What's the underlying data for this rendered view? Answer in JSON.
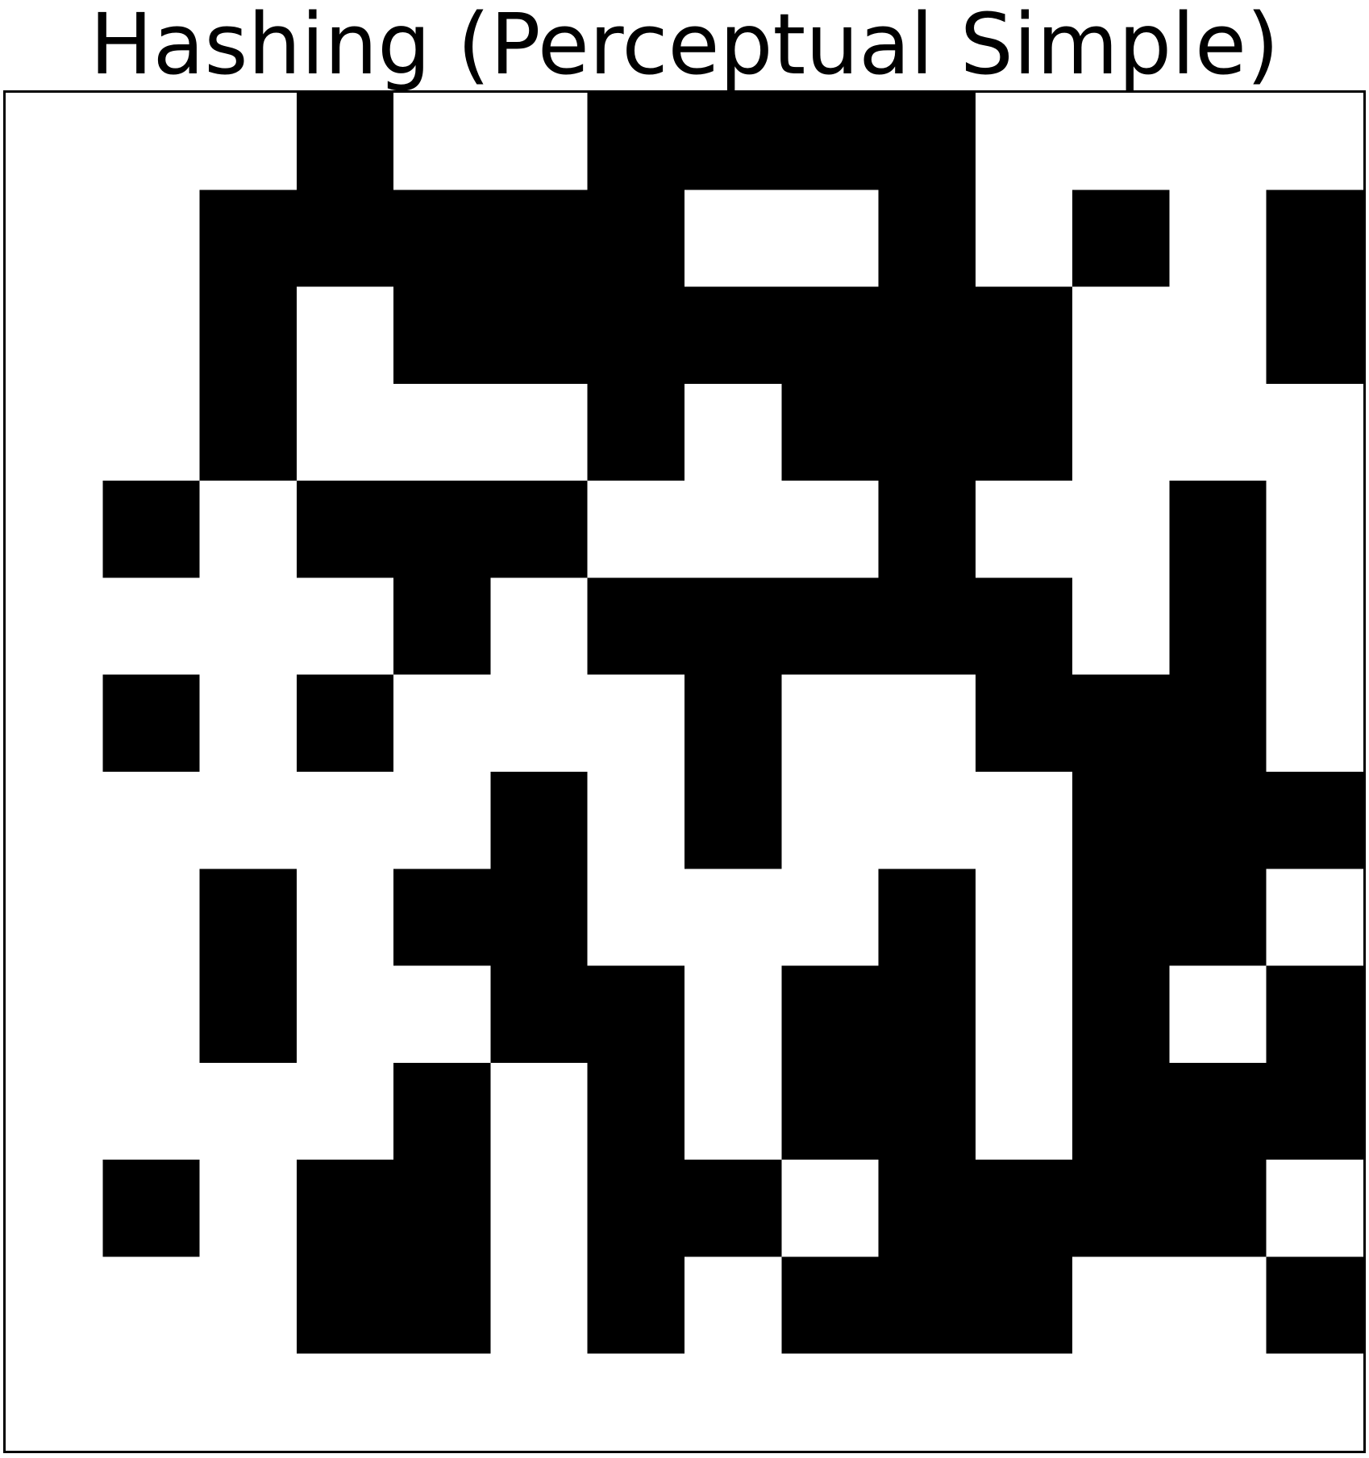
{
  "chart_data": {
    "type": "heatmap",
    "title": "Hashing (Perceptual Simple)",
    "xlabel": "",
    "ylabel": "",
    "grid": false,
    "colors": {
      "on": "#000000",
      "off": "#ffffff",
      "frame": "#000000"
    },
    "rows": 14,
    "cols": 14,
    "values": [
      [
        0,
        0,
        0,
        1,
        0,
        0,
        1,
        1,
        1,
        1,
        0,
        0,
        0,
        0
      ],
      [
        0,
        0,
        1,
        1,
        1,
        1,
        1,
        0,
        0,
        1,
        0,
        1,
        0,
        1
      ],
      [
        0,
        0,
        1,
        0,
        1,
        1,
        1,
        1,
        1,
        1,
        1,
        0,
        0,
        1
      ],
      [
        0,
        0,
        1,
        0,
        0,
        0,
        1,
        0,
        1,
        1,
        1,
        0,
        0,
        0
      ],
      [
        0,
        1,
        0,
        1,
        1,
        1,
        0,
        0,
        0,
        1,
        0,
        0,
        1,
        0
      ],
      [
        0,
        0,
        0,
        0,
        1,
        0,
        1,
        1,
        1,
        1,
        1,
        0,
        1,
        0
      ],
      [
        0,
        1,
        0,
        1,
        0,
        0,
        0,
        1,
        0,
        0,
        1,
        1,
        1,
        0
      ],
      [
        0,
        0,
        0,
        0,
        0,
        1,
        0,
        1,
        0,
        0,
        0,
        1,
        1,
        1
      ],
      [
        0,
        0,
        1,
        0,
        1,
        1,
        0,
        0,
        0,
        1,
        0,
        1,
        1,
        0
      ],
      [
        0,
        0,
        1,
        0,
        0,
        1,
        1,
        0,
        1,
        1,
        0,
        1,
        0,
        1
      ],
      [
        0,
        0,
        0,
        0,
        1,
        0,
        1,
        0,
        1,
        1,
        0,
        1,
        1,
        1
      ],
      [
        0,
        1,
        0,
        1,
        1,
        0,
        1,
        1,
        0,
        1,
        1,
        1,
        1,
        0
      ],
      [
        0,
        0,
        0,
        1,
        1,
        0,
        1,
        0,
        1,
        1,
        1,
        0,
        0,
        1
      ],
      [
        0,
        0,
        0,
        0,
        0,
        0,
        0,
        0,
        0,
        0,
        0,
        0,
        0,
        0
      ]
    ]
  }
}
